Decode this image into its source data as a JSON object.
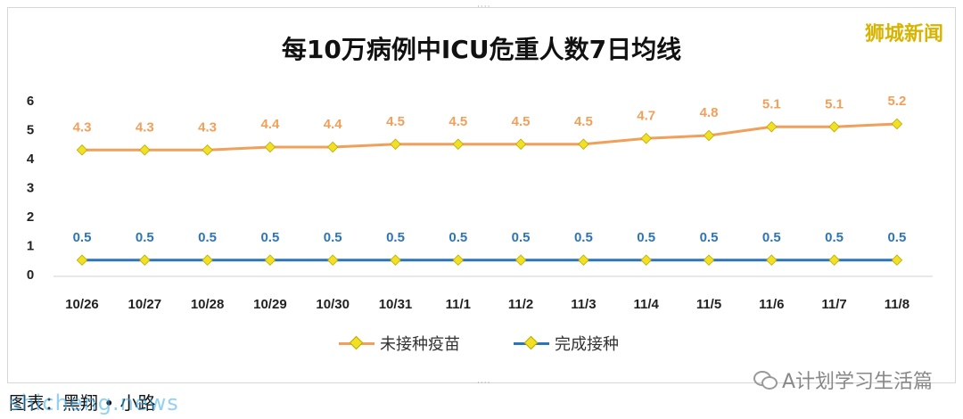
{
  "title": "每10万病例中ICU危重人数7日均线",
  "brand": "狮城新闻",
  "watermark": "A计划学习生活篇",
  "caption": "图表：黑翔 • 小路",
  "caption_watermark": "shicheng.news",
  "icons": {
    "wechat": "wechat-icon"
  },
  "chart_data": {
    "type": "line",
    "title": "每10万病例中ICU危重人数7日均线",
    "categories": [
      "10/26",
      "10/27",
      "10/28",
      "10/29",
      "10/30",
      "10/31",
      "11/1",
      "11/2",
      "11/3",
      "11/4",
      "11/5",
      "11/6",
      "11/7",
      "11/8"
    ],
    "ylim": [
      0,
      6
    ],
    "yticks": [
      0,
      1,
      2,
      3,
      4,
      5,
      6
    ],
    "grid": false,
    "legend_position": "bottom",
    "series": [
      {
        "name": "未接种疫苗",
        "color": "#f0a05a",
        "values": [
          4.3,
          4.3,
          4.3,
          4.4,
          4.4,
          4.5,
          4.5,
          4.5,
          4.5,
          4.7,
          4.8,
          5.1,
          5.1,
          5.2
        ],
        "value_labels": [
          "4.3",
          "4.3",
          "4.3",
          "4.4",
          "4.4",
          "4.5",
          "4.5",
          "4.5",
          "4.5",
          "4.7",
          "4.8",
          "5.1",
          "5.1",
          "5.2"
        ]
      },
      {
        "name": "完成接种",
        "color": "#2e75b6",
        "values": [
          0.5,
          0.5,
          0.5,
          0.5,
          0.5,
          0.5,
          0.5,
          0.5,
          0.5,
          0.5,
          0.5,
          0.5,
          0.5,
          0.5
        ],
        "value_labels": [
          "0.5",
          "0.5",
          "0.5",
          "0.5",
          "0.5",
          "0.5",
          "0.5",
          "0.5",
          "0.5",
          "0.5",
          "0.5",
          "0.5",
          "0.5",
          "0.5"
        ]
      }
    ],
    "marker_color": "#f2e025"
  }
}
